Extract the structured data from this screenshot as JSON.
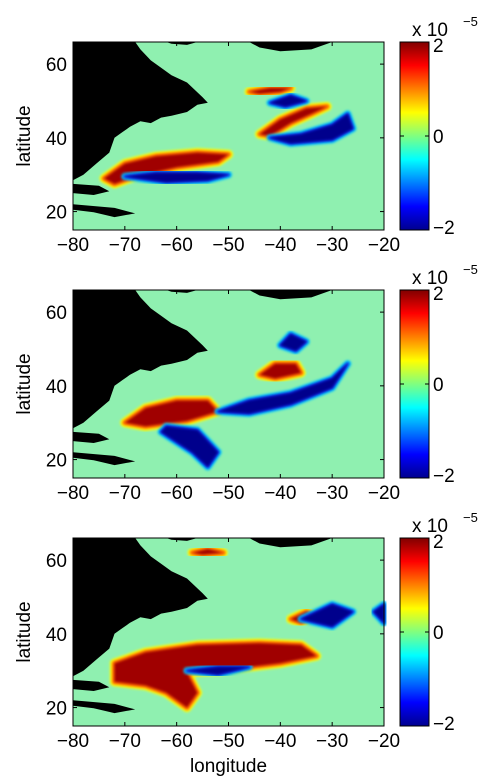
{
  "chart_data": [
    {
      "type": "heatmap",
      "title": "",
      "xlabel": "",
      "ylabel": "latitude",
      "xlim": [
        -80,
        -20
      ],
      "ylim": [
        15,
        66
      ],
      "xticks": [
        "-80",
        "-70",
        "-60",
        "-50",
        "-40",
        "-30",
        "-20"
      ],
      "yticks": [
        "20",
        "40",
        "60"
      ],
      "colorbar": {
        "range": [
          -2,
          2
        ],
        "ticks": [
          "2",
          "0",
          "-2"
        ],
        "scale_prefix": "x 10",
        "scale_exponent": "-5"
      },
      "colors": {
        "land": "#000000",
        "background": "#8ff0b0"
      },
      "features": [
        {
          "kind": "positive",
          "points": [
            [
              -74,
              29
            ],
            [
              -70,
              33
            ],
            [
              -64,
              35
            ],
            [
              -56,
              36
            ],
            [
              -50,
              35.5
            ],
            [
              -52,
              33.5
            ],
            [
              -60,
              32
            ],
            [
              -68,
              29.5
            ],
            [
              -72,
              27.5
            ]
          ]
        },
        {
          "kind": "positive",
          "points": [
            [
              -44,
              41
            ],
            [
              -40,
              45
            ],
            [
              -35,
              48
            ],
            [
              -31,
              48.5
            ],
            [
              -34,
              46.5
            ],
            [
              -38,
              44
            ],
            [
              -42,
              40.5
            ]
          ]
        },
        {
          "kind": "positive",
          "points": [
            [
              -46,
              52.5
            ],
            [
              -42,
              53.5
            ],
            [
              -38,
              53.5
            ],
            [
              -40,
              52.5
            ],
            [
              -44,
              52
            ]
          ]
        },
        {
          "kind": "negative",
          "points": [
            [
              -70,
              29.5
            ],
            [
              -62,
              28
            ],
            [
              -54,
              28.5
            ],
            [
              -50,
              30
            ],
            [
              -56,
              30.5
            ],
            [
              -64,
              30.5
            ]
          ]
        },
        {
          "kind": "negative",
          "points": [
            [
              -42,
              40
            ],
            [
              -36,
              41
            ],
            [
              -30,
              43.5
            ],
            [
              -27,
              46.5
            ],
            [
              -26,
              42.5
            ],
            [
              -30,
              39.5
            ],
            [
              -38,
              38.5
            ]
          ]
        },
        {
          "kind": "negative",
          "points": [
            [
              -42,
              49.5
            ],
            [
              -38,
              51.5
            ],
            [
              -35,
              50
            ],
            [
              -39,
              48.5
            ]
          ]
        }
      ]
    },
    {
      "type": "heatmap",
      "title": "",
      "xlabel": "",
      "ylabel": "latitude",
      "xlim": [
        -80,
        -20
      ],
      "ylim": [
        15,
        66
      ],
      "xticks": [
        "-80",
        "-70",
        "-60",
        "-50",
        "-40",
        "-30",
        "-20"
      ],
      "yticks": [
        "20",
        "40",
        "60"
      ],
      "colorbar": {
        "range": [
          -2,
          2
        ],
        "ticks": [
          "2",
          "0",
          "-2"
        ],
        "scale_prefix": "x 10",
        "scale_exponent": "-5"
      },
      "colors": {
        "land": "#000000",
        "background": "#8ff0b0"
      },
      "features": [
        {
          "kind": "positive",
          "points": [
            [
              -70,
              30
            ],
            [
              -66,
              34
            ],
            [
              -60,
              36
            ],
            [
              -54,
              36
            ],
            [
              -52,
              33
            ],
            [
              -58,
              30.5
            ],
            [
              -66,
              29
            ]
          ]
        },
        {
          "kind": "positive",
          "points": [
            [
              -44,
              43
            ],
            [
              -41,
              46
            ],
            [
              -37,
              46
            ],
            [
              -36,
              43.5
            ],
            [
              -41,
              42
            ]
          ]
        },
        {
          "kind": "negative",
          "points": [
            [
              -56,
              28
            ],
            [
              -62,
              29
            ],
            [
              -63,
              27.5
            ],
            [
              -57,
              22
            ],
            [
              -54,
              18
            ],
            [
              -52,
              22
            ]
          ]
        },
        {
          "kind": "negative",
          "points": [
            [
              -52,
              33
            ],
            [
              -46,
              36
            ],
            [
              -38,
              38
            ],
            [
              -30,
              42
            ],
            [
              -27,
              46
            ],
            [
              -30,
              39.5
            ],
            [
              -38,
              35
            ],
            [
              -46,
              32.5
            ]
          ]
        },
        {
          "kind": "negative",
          "points": [
            [
              -40,
              51
            ],
            [
              -38,
              54
            ],
            [
              -35,
              52
            ],
            [
              -37,
              49.5
            ]
          ]
        }
      ]
    },
    {
      "type": "heatmap",
      "title": "",
      "xlabel": "longitude",
      "ylabel": "latitude",
      "xlim": [
        -80,
        -20
      ],
      "ylim": [
        15,
        66
      ],
      "xticks": [
        "-80",
        "-70",
        "-60",
        "-50",
        "-40",
        "-30",
        "-20"
      ],
      "yticks": [
        "20",
        "40",
        "60"
      ],
      "colorbar": {
        "range": [
          -2,
          2
        ],
        "ticks": [
          "2",
          "0",
          "-2"
        ],
        "scale_prefix": "x 10",
        "scale_exponent": "-5"
      },
      "colors": {
        "land": "#000000",
        "background": "#8ff0b0"
      },
      "features": [
        {
          "kind": "positive",
          "points": [
            [
              -72,
              27
            ],
            [
              -72,
              32
            ],
            [
              -66,
              35
            ],
            [
              -56,
              37
            ],
            [
              -44,
              37.5
            ],
            [
              -36,
              37
            ],
            [
              -33,
              34
            ],
            [
              -40,
              32
            ],
            [
              -52,
              30
            ],
            [
              -58,
              29.5
            ],
            [
              -56,
              24
            ],
            [
              -58,
              20
            ],
            [
              -62,
              24
            ],
            [
              -66,
              26
            ]
          ]
        },
        {
          "kind": "positive",
          "points": [
            [
              -38,
              44
            ],
            [
              -35,
              46
            ],
            [
              -33,
              45
            ],
            [
              -36,
              43
            ]
          ]
        },
        {
          "kind": "positive",
          "points": [
            [
              -57,
              62
            ],
            [
              -54,
              63
            ],
            [
              -51,
              62
            ],
            [
              -55,
              61.5
            ]
          ]
        },
        {
          "kind": "negative",
          "points": [
            [
              -36,
              44
            ],
            [
              -30,
              48
            ],
            [
              -26,
              46
            ],
            [
              -30,
              42
            ]
          ]
        },
        {
          "kind": "negative",
          "points": [
            [
              -22,
              46
            ],
            [
              -20,
              48
            ],
            [
              -20,
              43
            ]
          ]
        },
        {
          "kind": "negative",
          "points": [
            [
              -58,
              30
            ],
            [
              -52,
              31
            ],
            [
              -46,
              31
            ],
            [
              -52,
              29
            ]
          ]
        }
      ]
    }
  ]
}
